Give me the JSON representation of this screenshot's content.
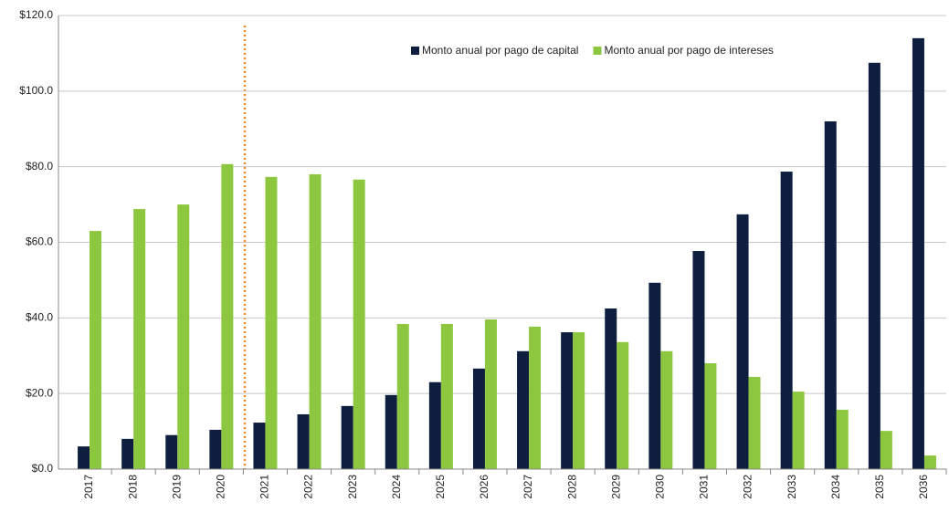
{
  "chart_data": {
    "type": "bar",
    "categories": [
      "2017",
      "2018",
      "2019",
      "2020",
      "2021",
      "2022",
      "2023",
      "2024",
      "2025",
      "2026",
      "2027",
      "2028",
      "2029",
      "2030",
      "2031",
      "2032",
      "2033",
      "2034",
      "2035",
      "2036"
    ],
    "series": [
      {
        "name": "Monto anual por pago de capital",
        "color": "#0e1e3f",
        "values": [
          6.0,
          8.0,
          9.0,
          10.4,
          12.3,
          14.5,
          16.7,
          19.6,
          23.0,
          26.6,
          31.2,
          36.2,
          42.5,
          49.3,
          57.7,
          67.4,
          78.7,
          92.0,
          107.5,
          114.0
        ]
      },
      {
        "name": "Monto anual por pago de intereses",
        "color": "#8dc63f",
        "values": [
          63.0,
          68.8,
          70.0,
          80.7,
          77.3,
          78.0,
          76.6,
          38.4,
          38.4,
          39.6,
          37.7,
          36.2,
          33.6,
          31.2,
          28.0,
          24.4,
          20.5,
          15.7,
          10.1,
          3.6
        ]
      }
    ],
    "ylim": [
      0,
      120
    ],
    "yticks": [
      {
        "value": 0,
        "label": "$0.0"
      },
      {
        "value": 20,
        "label": "$20.0"
      },
      {
        "value": 40,
        "label": "$40.0"
      },
      {
        "value": 60,
        "label": "$60.0"
      },
      {
        "value": 80,
        "label": "$80.0"
      },
      {
        "value": 100,
        "label": "$100.0"
      },
      {
        "value": 120,
        "label": "$120.0"
      }
    ],
    "grid": true,
    "legend": "top-right"
  }
}
